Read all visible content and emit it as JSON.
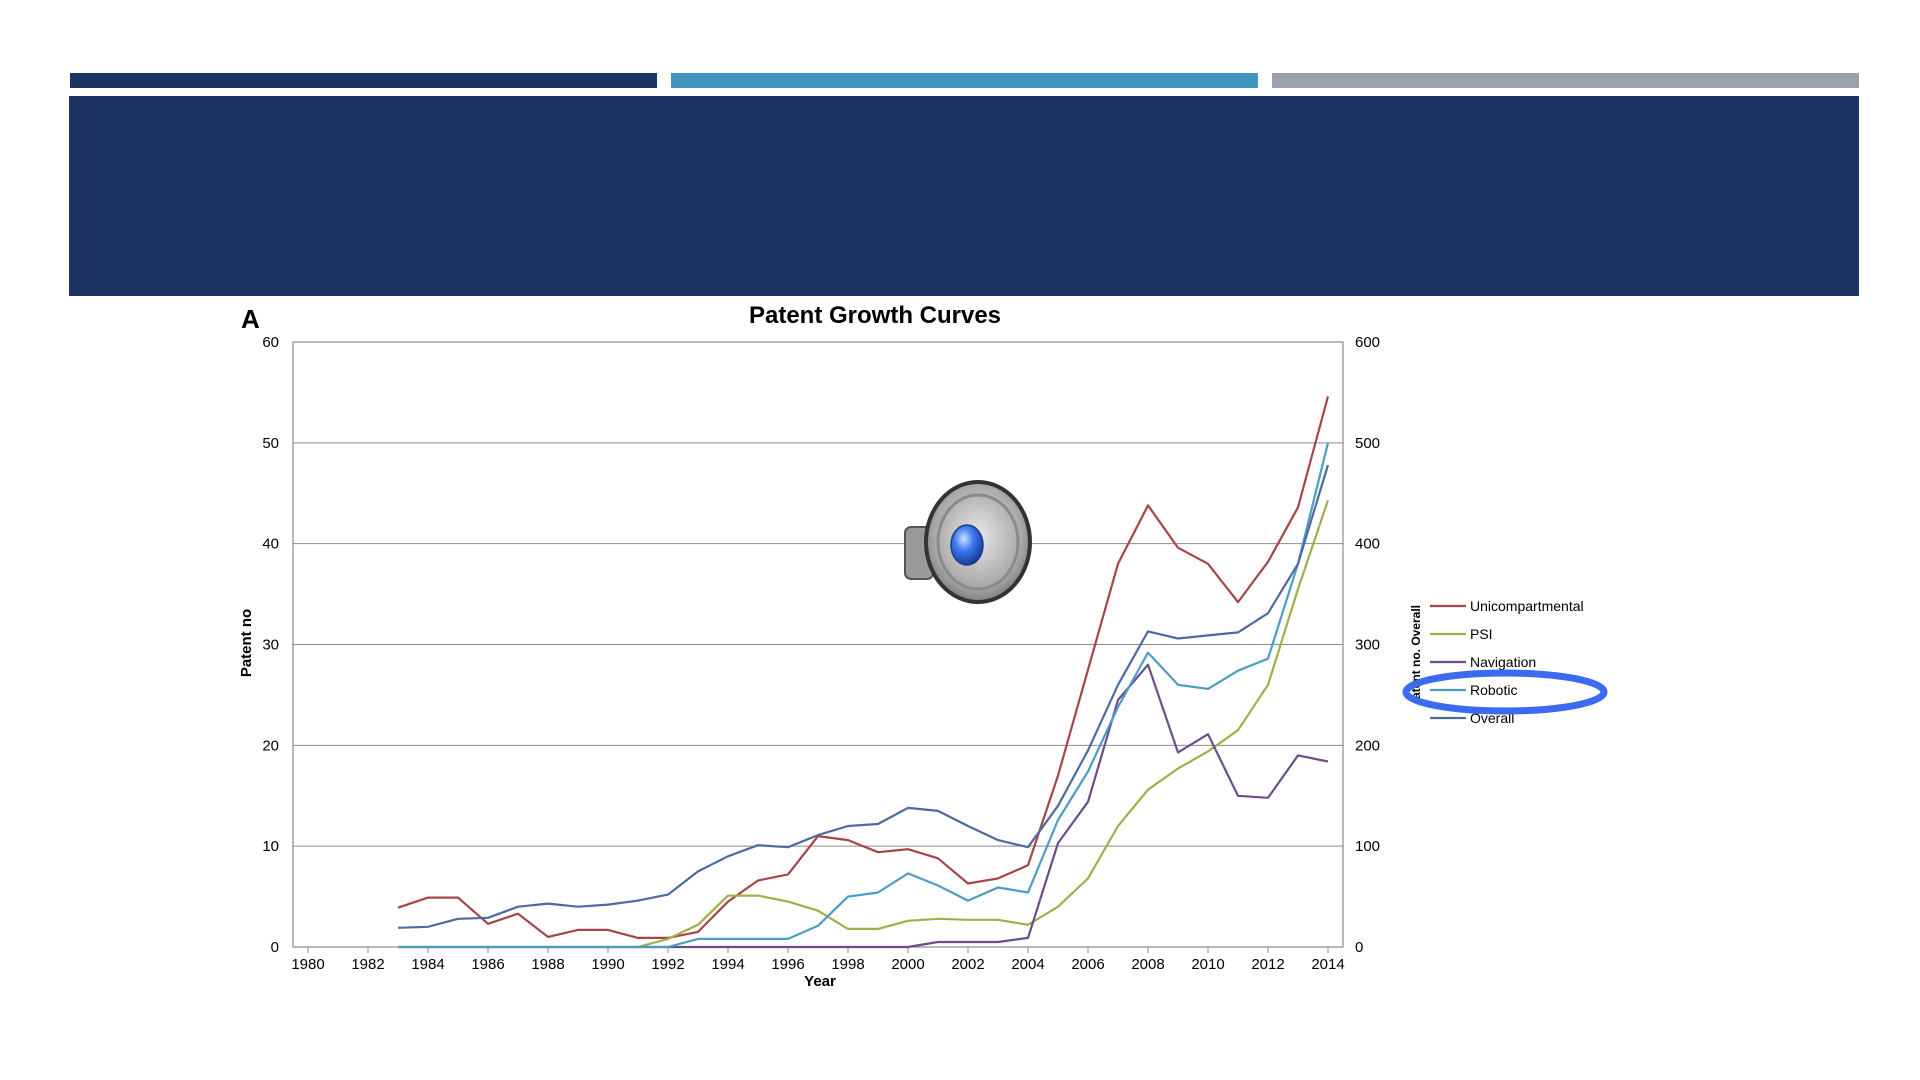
{
  "slide": {
    "accent_colors": [
      "#1c3461",
      "#4394bf",
      "#99a1aa"
    ],
    "title_band_color": "#1c3461",
    "audio_icon": "speaker-icon",
    "highlight_color": "#3b6cf0"
  },
  "chart_data": {
    "type": "line",
    "panel_label": "A",
    "title": "Patent Growth Curves",
    "xlabel": "Year",
    "ylabel": "Patent no",
    "ylabel_right": "atent no. Overall",
    "xlim": [
      1979.5,
      2014.5
    ],
    "ylim": [
      0,
      60
    ],
    "ylim_right": [
      0,
      600
    ],
    "x_ticks": [
      "1980",
      "1982",
      "1984",
      "1986",
      "1988",
      "1990",
      "1992",
      "1994",
      "1996",
      "1998",
      "2000",
      "2002",
      "2004",
      "2006",
      "2008",
      "2010",
      "2012",
      "2014"
    ],
    "y_ticks": [
      "0",
      "10",
      "20",
      "30",
      "40",
      "50",
      "60"
    ],
    "y_ticks_right": [
      "0",
      "100",
      "200",
      "300",
      "400",
      "500",
      "600"
    ],
    "grid": "horizontal",
    "legend_position": "right",
    "highlighted_legend_item": "Robotic",
    "series": [
      {
        "name": "Unicompartmental",
        "color": "#a4454a",
        "axis": "left",
        "x": [
          1983,
          1984,
          1985,
          1986,
          1987,
          1988,
          1989,
          1990,
          1991,
          1992,
          1993,
          1994,
          1995,
          1996,
          1997,
          1998,
          1999,
          2000,
          2001,
          2002,
          2003,
          2004,
          2005,
          2006,
          2007,
          2008,
          2009,
          2010,
          2011,
          2012,
          2013,
          2014
        ],
        "values": [
          3.9,
          4.9,
          4.9,
          2.3,
          3.3,
          1.0,
          1.7,
          1.7,
          0.9,
          0.9,
          1.5,
          4.5,
          6.6,
          7.2,
          11.0,
          10.6,
          9.4,
          9.7,
          8.8,
          6.3,
          6.8,
          8.1,
          17.0,
          27.5,
          38.0,
          43.8,
          39.6,
          38.0,
          34.2,
          38.2,
          43.6,
          54.6
        ]
      },
      {
        "name": "PSI",
        "color": "#9fb04b",
        "axis": "left",
        "x": [
          1991,
          1992,
          1993,
          1994,
          1995,
          1996,
          1997,
          1998,
          1999,
          2000,
          2001,
          2002,
          2003,
          2004,
          2005,
          2006,
          2007,
          2008,
          2009,
          2010,
          2011,
          2012,
          2013,
          2014
        ],
        "values": [
          0,
          0.8,
          2.2,
          5.1,
          5.1,
          4.5,
          3.6,
          1.8,
          1.8,
          2.6,
          2.8,
          2.7,
          2.7,
          2.2,
          4.0,
          6.8,
          12.0,
          15.6,
          17.7,
          19.4,
          21.5,
          26.0,
          35.5,
          44.3
        ]
      },
      {
        "name": "Navigation",
        "color": "#6a4e8c",
        "axis": "left",
        "x": [
          1983,
          1984,
          1985,
          1986,
          1987,
          1988,
          1989,
          1990,
          1991,
          1992,
          1993,
          1994,
          1995,
          1996,
          1997,
          1998,
          1999,
          2000,
          2001,
          2002,
          2003,
          2004,
          2005,
          2006,
          2007,
          2008,
          2009,
          2010,
          2011,
          2012,
          2013,
          2014
        ],
        "values": [
          0,
          0,
          0,
          0,
          0,
          0,
          0,
          0,
          0,
          0,
          0,
          0,
          0,
          0,
          0,
          0,
          0,
          0,
          0.5,
          0.5,
          0.5,
          0.9,
          10.3,
          14.4,
          24.5,
          28.0,
          19.3,
          21.1,
          15.0,
          14.8,
          19.0,
          18.4
        ]
      },
      {
        "name": "Robotic",
        "color": "#4b9ec2",
        "axis": "left",
        "x": [
          1983,
          1984,
          1985,
          1986,
          1987,
          1988,
          1989,
          1990,
          1991,
          1992,
          1993,
          1994,
          1995,
          1996,
          1997,
          1998,
          1999,
          2000,
          2001,
          2002,
          2003,
          2004,
          2005,
          2006,
          2007,
          2008,
          2009,
          2010,
          2011,
          2012,
          2013,
          2014
        ],
        "values": [
          0,
          0,
          0,
          0,
          0,
          0,
          0,
          0,
          0,
          0,
          0.8,
          0.8,
          0.8,
          0.8,
          2.1,
          5.0,
          5.4,
          7.3,
          6.1,
          4.6,
          5.9,
          5.4,
          12.6,
          17.4,
          23.8,
          29.2,
          26.0,
          25.6,
          27.4,
          28.6,
          38.0,
          50.0
        ]
      },
      {
        "name": "Overall",
        "color": "#4d6b9f",
        "axis": "right",
        "x": [
          1983,
          1984,
          1985,
          1986,
          1987,
          1988,
          1989,
          1990,
          1991,
          1992,
          1993,
          1994,
          1995,
          1996,
          1997,
          1998,
          1999,
          2000,
          2001,
          2002,
          2003,
          2004,
          2005,
          2006,
          2007,
          2008,
          2009,
          2010,
          2011,
          2012,
          2013,
          2014
        ],
        "values": [
          19,
          20,
          28,
          29,
          40,
          43,
          40,
          42,
          46,
          52,
          75,
          90,
          101,
          99,
          111,
          120,
          122,
          138,
          135,
          120,
          106,
          99,
          140,
          195,
          260,
          313,
          306,
          309,
          312,
          331,
          380,
          478
        ]
      }
    ]
  }
}
